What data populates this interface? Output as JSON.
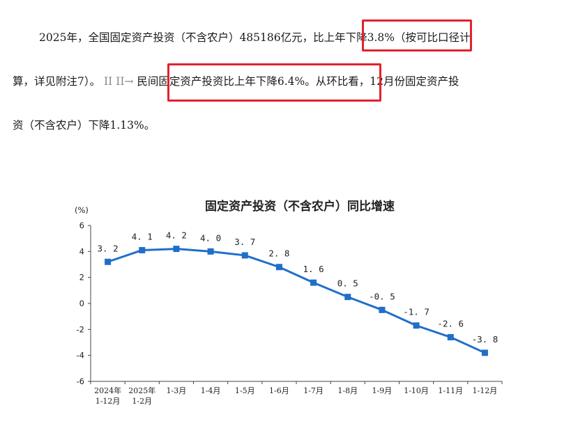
{
  "article": {
    "line1": "2025年，全国固定资产投资（不含农户）485186亿元，",
    "line1_highlight": "比上年下降3.8%",
    "line1_tail": "（按可比口径计",
    "line2_head": "算，详见附注7）。",
    "line2_highlight": "民间固定资产投资比上年下降6.4%。",
    "line2_tail": "从环比看，12月份固定资产投",
    "line3": "资（不含农户）下降1.13%。",
    "highlight_color": "#e0222d"
  },
  "chart_data": {
    "type": "line",
    "title": "固定资产投资（不含农户）同比增速",
    "ylabel": "(%)",
    "ylim": [
      -6,
      6
    ],
    "yticks": [
      6,
      4,
      2,
      0,
      -2,
      -4,
      -6
    ],
    "categories": [
      [
        "2024年",
        "1-12月"
      ],
      [
        "2025年",
        "1-2月"
      ],
      [
        "1-3月"
      ],
      [
        "1-4月"
      ],
      [
        "1-5月"
      ],
      [
        "1-6月"
      ],
      [
        "1-7月"
      ],
      [
        "1-8月"
      ],
      [
        "1-9月"
      ],
      [
        "1-10月"
      ],
      [
        "1-11月"
      ],
      [
        "1-12月"
      ]
    ],
    "values": [
      3.2,
      4.1,
      4.2,
      4.0,
      3.7,
      2.8,
      1.6,
      0.5,
      -0.5,
      -1.7,
      -2.6,
      -3.8
    ],
    "value_labels": [
      "3. 2",
      "4. 1",
      "4. 2",
      "4. 0",
      "3. 7",
      "2. 8",
      "1. 6",
      "0. 5",
      "-0. 5",
      "-1. 7",
      "-2. 6",
      "-3. 8"
    ],
    "line_color": "#1f6fc9",
    "grid": false
  }
}
